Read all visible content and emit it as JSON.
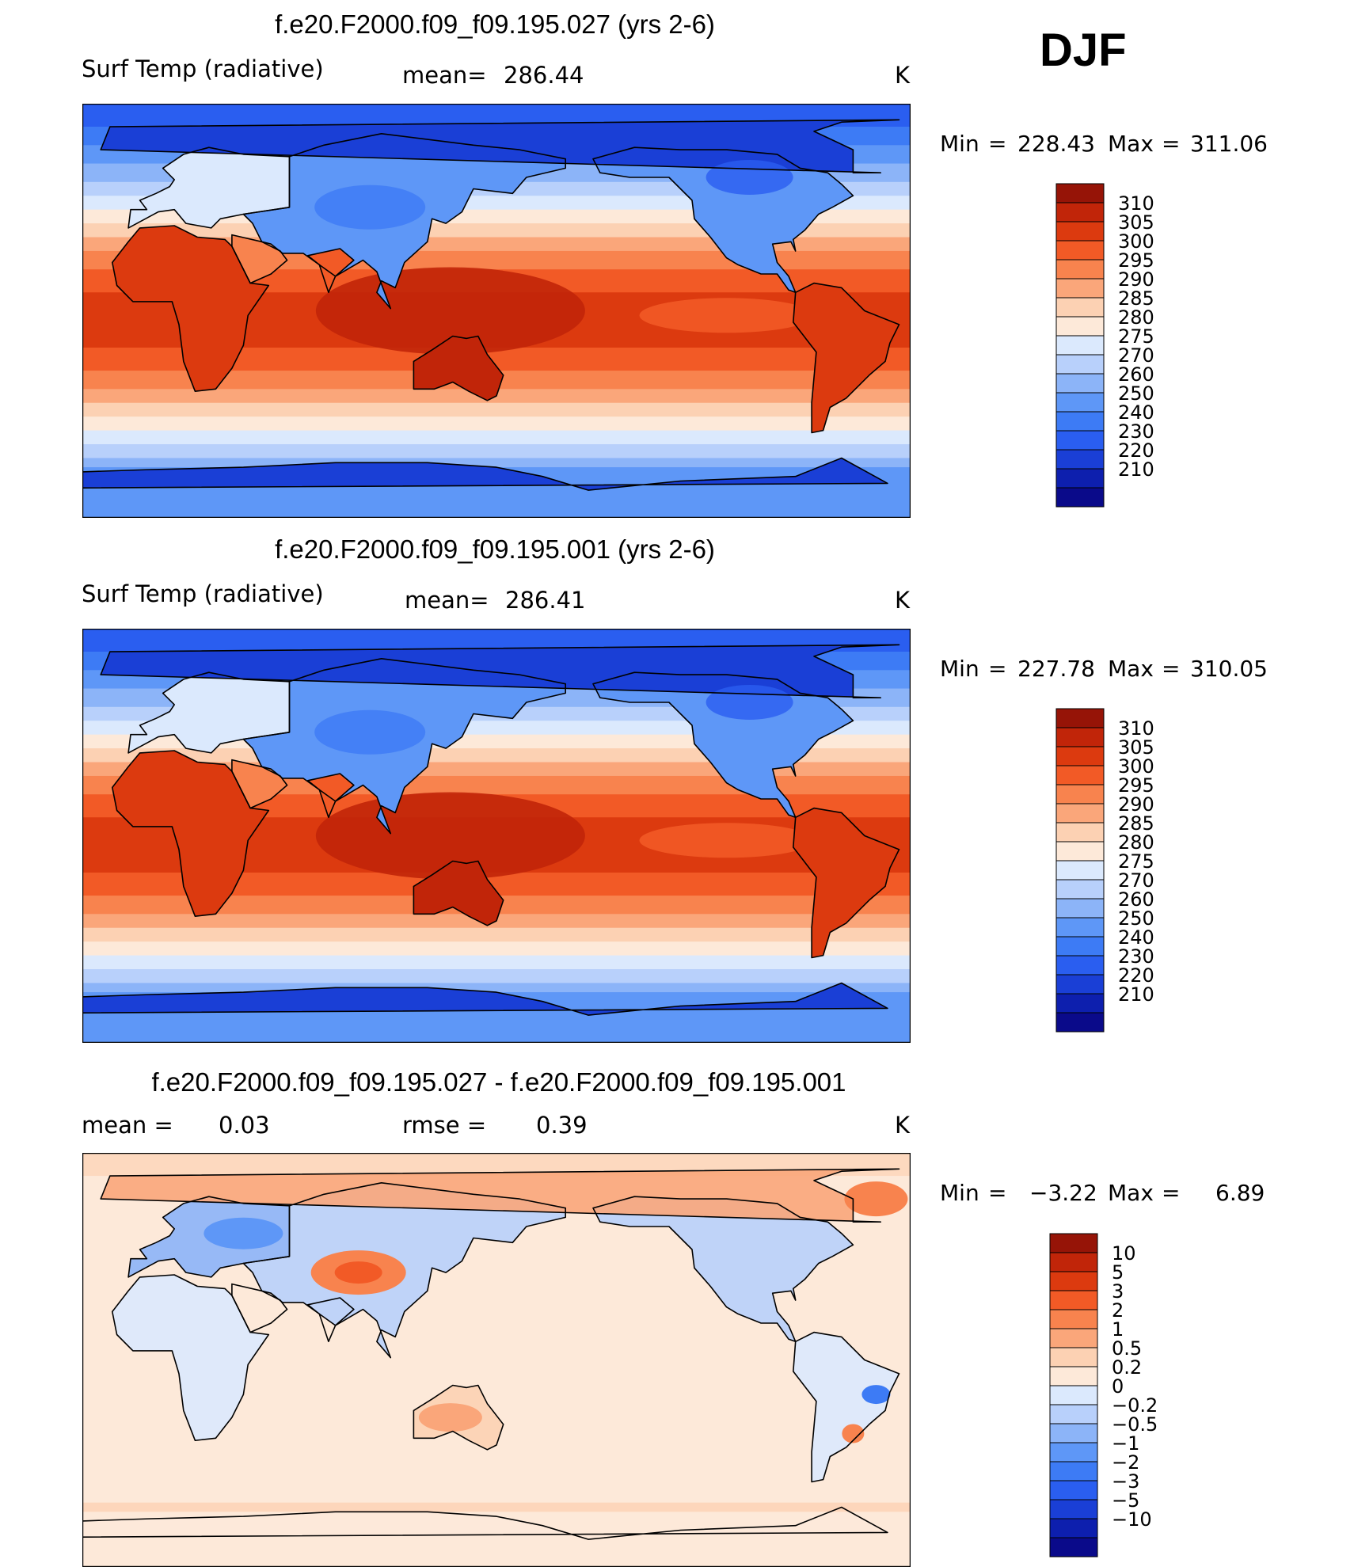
{
  "season": "DJF",
  "palettes": {
    "temp": [
      "#0a0a8a",
      "#0d1fae",
      "#1a3fd6",
      "#2a5ef0",
      "#3d7bf5",
      "#5e97f7",
      "#8cb4f8",
      "#b8d0fb",
      "#dbe9fd",
      "#fde9d9",
      "#fcd1b3",
      "#faa67a",
      "#f8834e",
      "#f25a26",
      "#dc3a0f",
      "#c12509",
      "#961407"
    ],
    "diff": [
      "#0a0a8a",
      "#0d1fae",
      "#1a3fd6",
      "#2a5ef0",
      "#3d7bf5",
      "#5e97f7",
      "#8cb4f8",
      "#b8d0fb",
      "#dbe9fd",
      "#fde9d9",
      "#fcd1b3",
      "#faa67a",
      "#f8834e",
      "#f25a26",
      "#dc3a0f",
      "#c12509",
      "#961407"
    ]
  },
  "chart_data": [
    {
      "type": "heatmap",
      "title": "f.e20.F2000.f09_f09.195.027 (yrs 2-6)",
      "variable": "Surf Temp (radiative)",
      "mean_label": "mean=",
      "mean": "286.44",
      "units": "K",
      "min_label": "Min",
      "min": "228.43",
      "max_label": "Max",
      "max": "311.06",
      "colorbar_levels": [
        "310",
        "305",
        "300",
        "295",
        "290",
        "285",
        "280",
        "275",
        "270",
        "260",
        "250",
        "240",
        "230",
        "220",
        "210"
      ]
    },
    {
      "type": "heatmap",
      "title": "f.e20.F2000.f09_f09.195.001 (yrs 2-6)",
      "variable": "Surf Temp (radiative)",
      "mean_label": "mean=",
      "mean": "286.41",
      "units": "K",
      "min_label": "Min",
      "min": "227.78",
      "max_label": "Max",
      "max": "310.05",
      "colorbar_levels": [
        "310",
        "305",
        "300",
        "295",
        "290",
        "285",
        "280",
        "275",
        "270",
        "260",
        "250",
        "240",
        "230",
        "220",
        "210"
      ]
    },
    {
      "type": "heatmap",
      "title": "f.e20.F2000.f09_f09.195.027 - f.e20.F2000.f09_f09.195.001",
      "mean_label": "mean =",
      "mean": "0.03",
      "rmse_label": "rmse =",
      "rmse": "0.39",
      "units": "K",
      "min_label": "Min",
      "min": "−3.22",
      "max_label": "Max",
      "max": "6.89",
      "colorbar_levels": [
        "10",
        "5",
        "3",
        "2",
        "1",
        "0.5",
        "0.2",
        "0",
        "−0.2",
        "−0.5",
        "−1",
        "−2",
        "−3",
        "−5",
        "−10"
      ]
    }
  ]
}
